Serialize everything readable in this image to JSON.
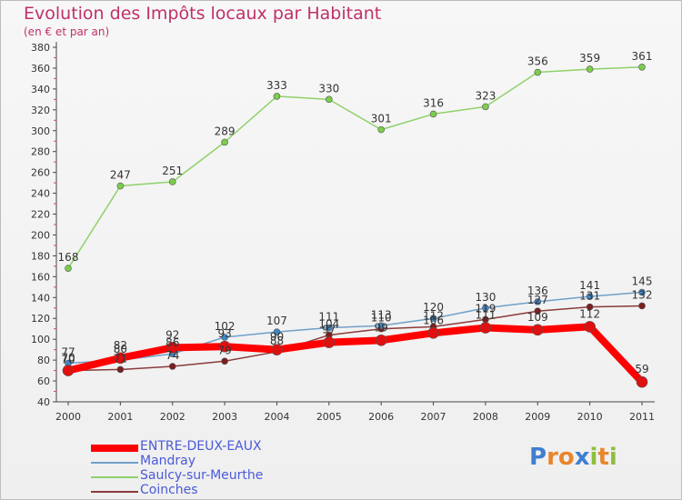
{
  "header": {
    "title": "Evolution des Impôts locaux par Habitant",
    "subtitle": "(en € et par an)"
  },
  "chart_data": {
    "type": "line",
    "title": "Evolution des Impôts locaux par Habitant",
    "subtitle": "(en € et par an)",
    "xlabel": "",
    "ylabel": "",
    "x": [
      "2000",
      "2001",
      "2002",
      "2003",
      "2004",
      "2005",
      "2006",
      "2007",
      "2008",
      "2009",
      "2010",
      "2011"
    ],
    "ylim": [
      40,
      380
    ],
    "yticks": [
      "40",
      "60",
      "80",
      "100",
      "120",
      "140",
      "160",
      "180",
      "200",
      "220",
      "240",
      "260",
      "280",
      "300",
      "320",
      "340",
      "360",
      "380"
    ],
    "grid": false,
    "legend": "bottom-left",
    "series": [
      {
        "name": "ENTRE-DEUX-EAUX",
        "color": "#ff0000",
        "values": [
          70,
          82,
          92,
          93,
          90,
          97,
          99,
          106,
          111,
          109,
          112,
          59
        ],
        "labels": [
          "70",
          "82",
          "92",
          "93",
          "90",
          "97",
          "99",
          "106",
          "111",
          "109",
          "112",
          "59"
        ]
      },
      {
        "name": "Mandray",
        "color": "#6fa0c8",
        "values": [
          77,
          80,
          86,
          102,
          107,
          111,
          113,
          120,
          130,
          136,
          141,
          145
        ],
        "labels": [
          "77",
          "80",
          "86",
          "102",
          "107",
          "111",
          "113",
          "120",
          "130",
          "136",
          "141",
          "145"
        ]
      },
      {
        "name": "Saulcy-sur-Meurthe",
        "color": "#8fd16a",
        "values": [
          168,
          247,
          251,
          289,
          333,
          330,
          301,
          316,
          323,
          356,
          359,
          361
        ],
        "labels": [
          "168",
          "247",
          "251",
          "289",
          "333",
          "330",
          "301",
          "316",
          "323",
          "356",
          "359",
          "361"
        ]
      },
      {
        "name": "Coinches",
        "color": "#8b3a3a",
        "values": [
          70,
          71,
          74,
          79,
          88,
          104,
          110,
          112,
          119,
          127,
          131,
          132
        ],
        "labels": [
          "70",
          "71",
          "74",
          "79",
          "88",
          "104",
          "110",
          "112",
          "119",
          "127",
          "131",
          "132"
        ]
      }
    ]
  },
  "logo": {
    "letters": [
      "P",
      "r",
      "o",
      "x",
      "i",
      "t",
      "i"
    ],
    "colors": [
      "#3f7fd0",
      "#e8862c",
      "#e8862c",
      "#3f7fd0",
      "#8fbf3f",
      "#e8862c",
      "#8fbf3f"
    ]
  }
}
